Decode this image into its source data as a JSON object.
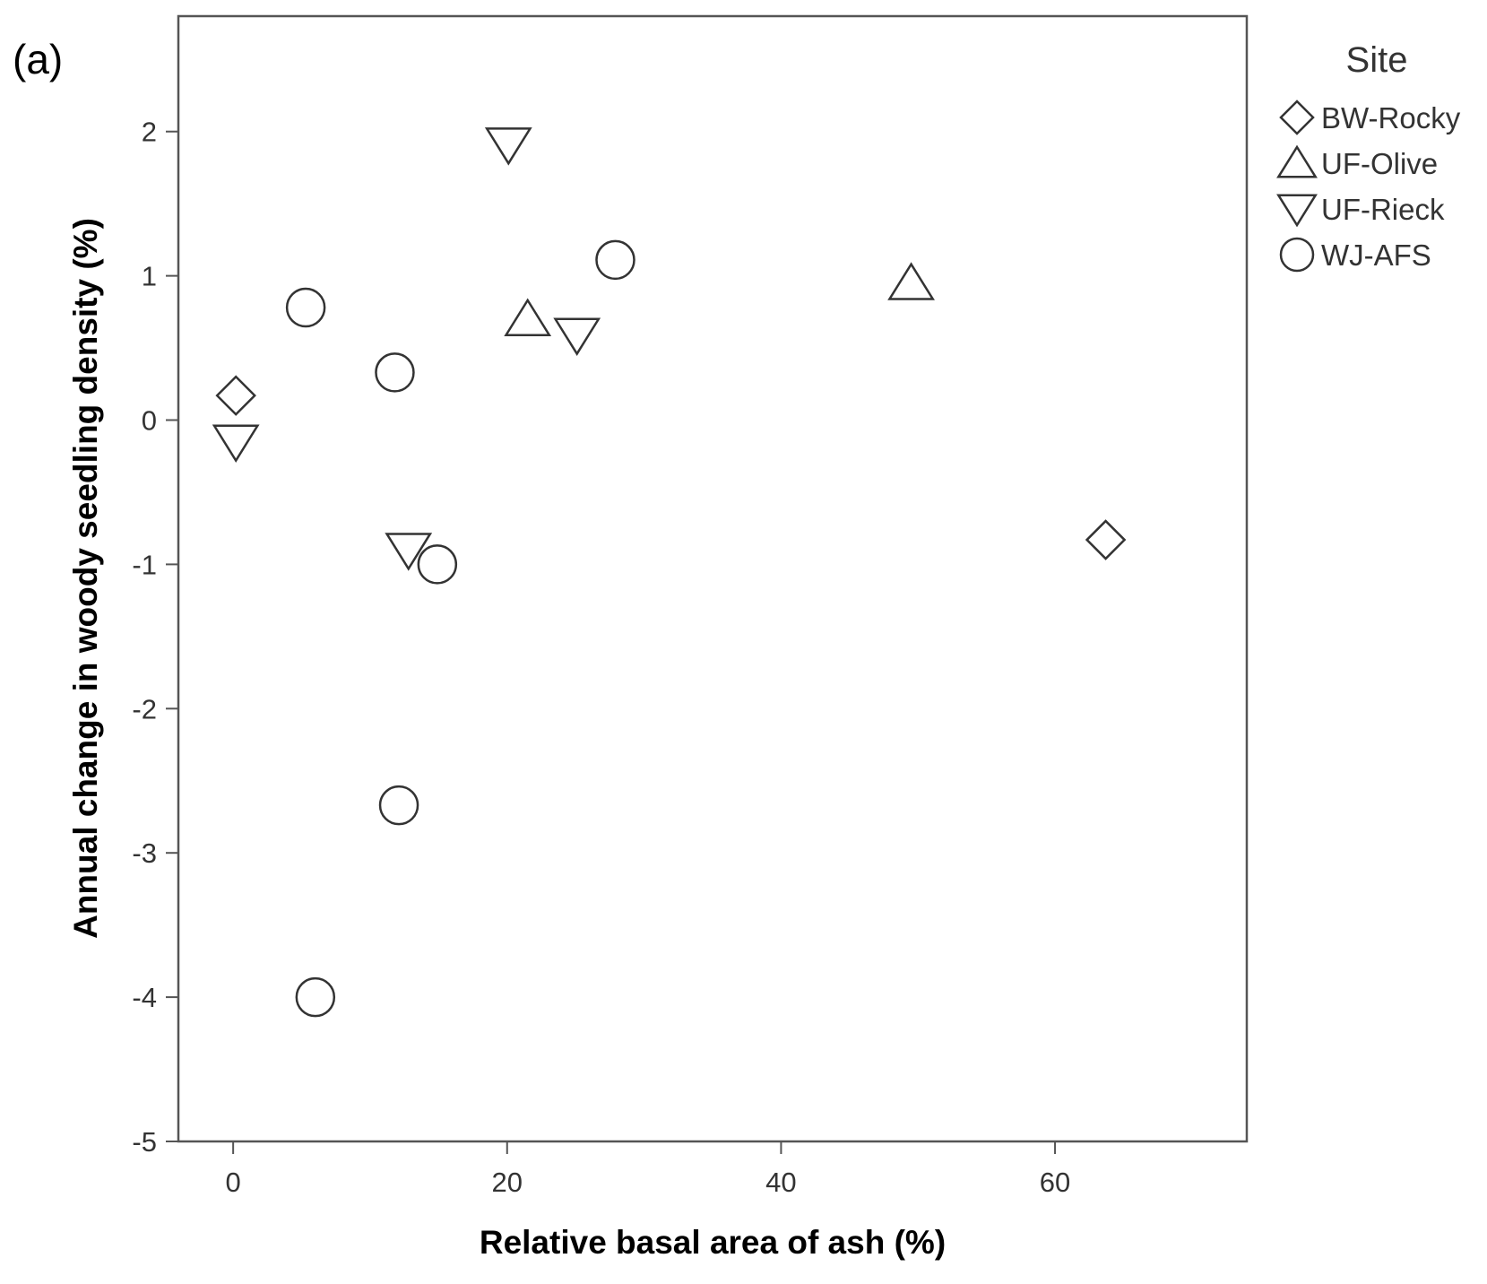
{
  "panel_label": "(a)",
  "chart_data": {
    "type": "scatter",
    "xlabel": "Relative basal area of ash (%)",
    "ylabel": "Annual change in woody seedling density (%)",
    "xlim": [
      -4,
      74
    ],
    "ylim": [
      -5,
      2.8
    ],
    "x_ticks": [
      0,
      20,
      40,
      60
    ],
    "x_tick_labels": [
      "0",
      "20",
      "40",
      "60"
    ],
    "y_ticks": [
      -5,
      -4,
      -3,
      -2,
      -1,
      0,
      1,
      2
    ],
    "y_tick_labels": [
      "-5",
      "-4",
      "-3",
      "-2",
      "-1",
      "0",
      "1",
      "2"
    ],
    "grid": false,
    "legend": {
      "title": "Site",
      "position": "right"
    },
    "series": [
      {
        "name": "BW-Rocky",
        "marker": "diamond",
        "points": [
          {
            "x": 0.2,
            "y": 0.17
          },
          {
            "x": 63.7,
            "y": -0.83
          }
        ]
      },
      {
        "name": "UF-Olive",
        "marker": "triangle-up",
        "points": [
          {
            "x": 21.5,
            "y": 0.7
          },
          {
            "x": 49.5,
            "y": 0.95
          }
        ]
      },
      {
        "name": "UF-Rieck",
        "marker": "triangle-down",
        "points": [
          {
            "x": 20.1,
            "y": 1.91
          },
          {
            "x": 25.1,
            "y": 0.59
          },
          {
            "x": 0.2,
            "y": -0.15
          },
          {
            "x": 12.8,
            "y": -0.9
          }
        ]
      },
      {
        "name": "WJ-AFS",
        "marker": "circle",
        "points": [
          {
            "x": 27.9,
            "y": 1.11
          },
          {
            "x": 5.3,
            "y": 0.78
          },
          {
            "x": 11.8,
            "y": 0.33
          },
          {
            "x": 14.9,
            "y": -1.0
          },
          {
            "x": 12.1,
            "y": -2.67
          },
          {
            "x": 6.0,
            "y": -4.0
          }
        ]
      }
    ]
  }
}
